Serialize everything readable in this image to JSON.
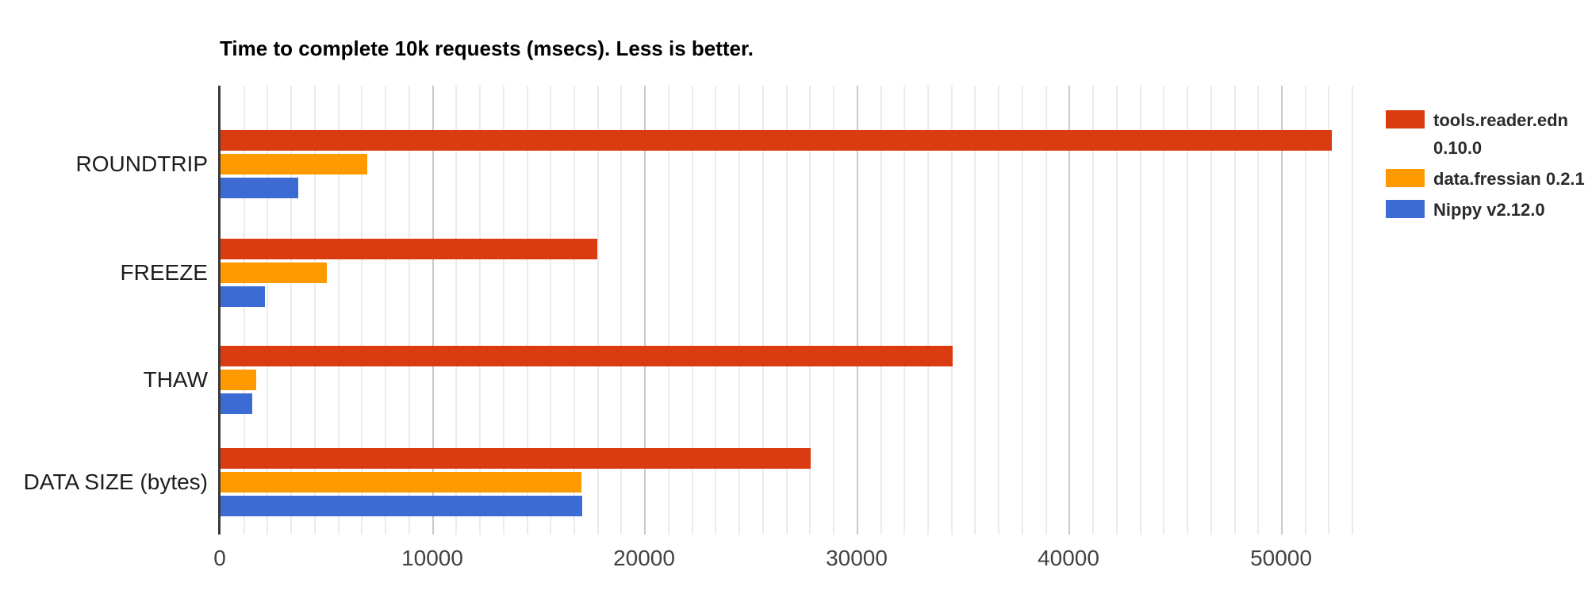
{
  "chart_data": {
    "type": "bar",
    "orientation": "horizontal",
    "title": "Time to complete 10k requests (msecs). Less is better.",
    "categories": [
      "ROUNDTRIP",
      "FREEZE",
      "THAW",
      "DATA SIZE (bytes)"
    ],
    "series": [
      {
        "name": "tools.reader.edn 0.10.0",
        "color": "#da3b10",
        "values": [
          52350,
          17750,
          34500,
          27800
        ]
      },
      {
        "name": "data.fressian 0.2.1",
        "color": "#ff9900",
        "values": [
          6900,
          5000,
          1700,
          17000
        ]
      },
      {
        "name": "Nippy v2.12.0",
        "color": "#3b6bd3",
        "values": [
          3650,
          2100,
          1500,
          17030
        ]
      }
    ],
    "x_axis": {
      "min": 0,
      "max": 53550,
      "major_step": 10000,
      "minor_divisions_per_major": 9,
      "tick_values": [
        0,
        10000,
        20000,
        30000,
        40000,
        50000
      ],
      "tick_labels": [
        "0",
        "10000",
        "20000",
        "30000",
        "40000",
        "50000"
      ]
    },
    "y_axis_label": "",
    "legend_position": "right",
    "grid": true,
    "background_color": "#ffffff",
    "gridline_minor_color": "#ebebeb",
    "gridline_major_color": "#c9c9c9",
    "axis_line_color": "#3a3a3a"
  }
}
